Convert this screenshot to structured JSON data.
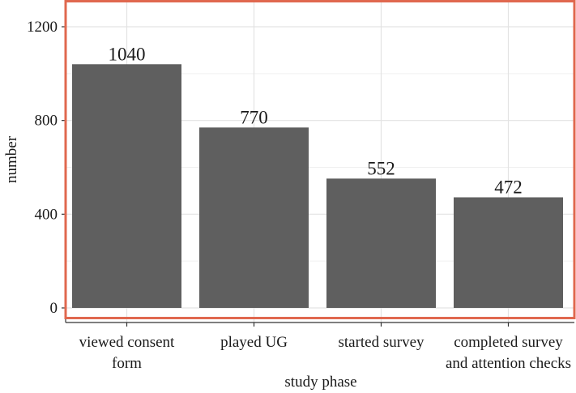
{
  "chart_data": {
    "type": "bar",
    "categories": [
      [
        "viewed consent",
        "form"
      ],
      [
        "played UG"
      ],
      [
        "started survey"
      ],
      [
        "completed survey",
        "and attention checks"
      ]
    ],
    "values": [
      1040,
      770,
      552,
      472
    ],
    "data_labels": [
      "1040",
      "770",
      "552",
      "472"
    ],
    "title": "",
    "xlabel": "study phase",
    "ylabel": "number",
    "ylim": [
      -50,
      1300
    ],
    "yticks": [
      0,
      400,
      800,
      1200
    ],
    "grid": true,
    "legend": "none",
    "bar_color": "#5f5f5f",
    "highlight_border_color": "#e0684f"
  }
}
